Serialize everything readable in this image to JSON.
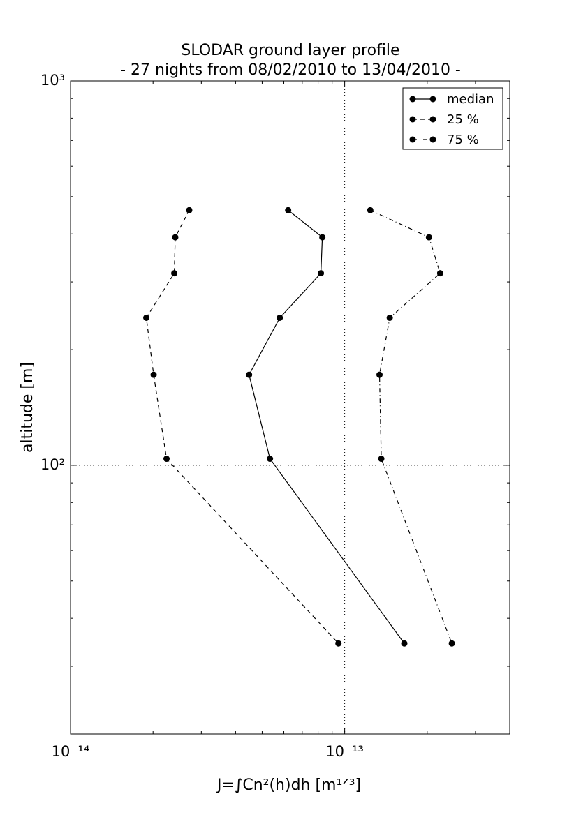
{
  "chart_data": {
    "type": "line",
    "title": "SLODAR ground layer profile",
    "subtitle": "- 27 nights from 08/02/2010 to 13/04/2010 -",
    "x_label": "J=∫Cn²(h)dh [m¹ᐟ³]",
    "y_label": "altitude [m]",
    "x_scale": "log",
    "y_scale": "log",
    "xlim": [
      1e-14,
      4e-13
    ],
    "ylim": [
      20,
      1000
    ],
    "xticks": [
      {
        "value": 1e-14,
        "label": "10⁻¹⁴"
      },
      {
        "value": 1e-13,
        "label": "10⁻¹³"
      }
    ],
    "yticks": [
      {
        "value": 100,
        "label": "10²"
      },
      {
        "value": 1000,
        "label": "10³"
      }
    ],
    "xminorticks": [
      2e-14,
      3e-14,
      4e-14,
      5e-14,
      6e-14,
      7e-14,
      8e-14,
      9e-14,
      2e-13,
      3e-13
    ],
    "yminorticks": [
      20,
      30,
      40,
      50,
      60,
      70,
      80,
      90,
      200,
      300,
      400,
      500,
      600,
      700,
      800,
      900
    ],
    "grid": true,
    "legend": "upper right",
    "y": [
      461,
      392,
      316,
      242,
      172,
      104,
      34.4
    ],
    "series": [
      {
        "name": "median",
        "color": "#000000",
        "linestyle": "solid",
        "values": [
          6.22e-14,
          8.29e-14,
          8.19e-14,
          5.8e-14,
          4.48e-14,
          5.34e-14,
          1.65e-13
        ]
      },
      {
        "name": "25 %",
        "color": "#000000",
        "linestyle": "dashed",
        "values": [
          2.71e-14,
          2.41e-14,
          2.39e-14,
          1.89e-14,
          2.01e-14,
          2.24e-14,
          9.49e-14
        ]
      },
      {
        "name": "75 %",
        "color": "#000000",
        "linestyle": "dashdot",
        "values": [
          1.24e-13,
          2.03e-13,
          2.23e-13,
          1.46e-13,
          1.34e-13,
          1.36e-13,
          2.46e-13
        ]
      }
    ]
  }
}
